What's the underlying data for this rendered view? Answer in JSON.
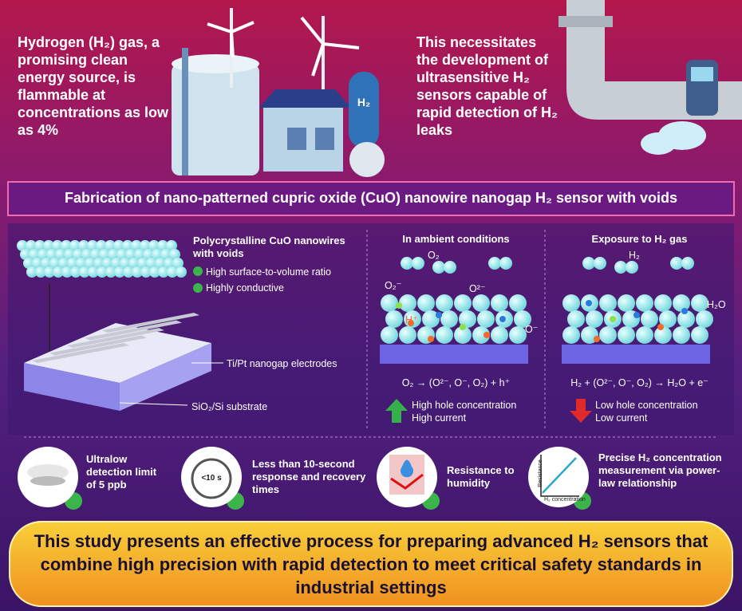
{
  "intro": {
    "left": "Hydrogen (H₂) gas, a promising clean energy source, is flammable at concentrations as low as 4%",
    "right": "This necessitates the development of ultrasensitive H₂ sensors capable of rapid detection of H₂ leaks",
    "tank_label": "H₂"
  },
  "banner": "Fabrication of nano-patterned cupric oxide (CuO) nanowire nanogap H₂ sensor with voids",
  "device": {
    "title": "Polycrystalline CuO nanowires with voids",
    "features": [
      "High surface-to-volume ratio",
      "Highly conductive"
    ],
    "electrodes": "Ti/Pt nanogap electrodes",
    "substrate": "SiO₂/Si substrate"
  },
  "ambient": {
    "title": "In ambient conditions",
    "labels": [
      "O₂",
      "O₂⁻",
      "O²⁻",
      "H⁺",
      "O⁻"
    ],
    "equation": "O₂ → (O²⁻, O⁻, O₂) + h⁺",
    "result": [
      "High hole concentration",
      "High current"
    ]
  },
  "exposure": {
    "title": "Exposure to H₂ gas",
    "labels": [
      "H₂",
      "H₂O"
    ],
    "equation": "H₂ + (O²⁻, O⁻, O₂) → H₂O + e⁻",
    "result": [
      "Low hole concentration",
      "Low current"
    ]
  },
  "features": [
    {
      "text": "Ultralow detection limit of 5 ppb"
    },
    {
      "text": "Less than 10-second response and recovery times",
      "icon": "<10 s"
    },
    {
      "text": "Resistance to humidity"
    },
    {
      "text": "Precise H₂ concentration measurement via power-law relationship",
      "axis_y": "Resistance",
      "axis_x": "H₂ concentration"
    }
  ],
  "conclusion": "This study presents an effective process for preparing advanced H₂ sensors that combine high precision with rapid detection to meet critical safety standards in industrial settings"
}
